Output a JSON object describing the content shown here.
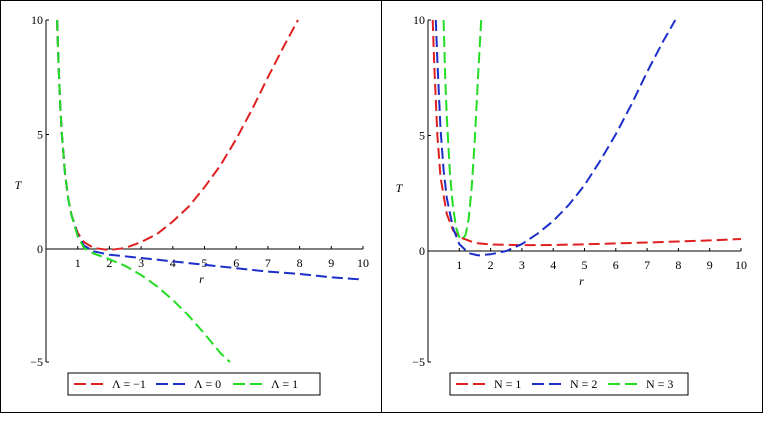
{
  "chart_data": [
    {
      "type": "line",
      "xlabel": "r",
      "ylabel": "T",
      "xlim": [
        0,
        10
      ],
      "ylim": [
        -5,
        10
      ],
      "x_ticks": [
        "1",
        "2",
        "3",
        "4",
        "5",
        "6",
        "7",
        "8",
        "9",
        "10"
      ],
      "y_ticks": [
        "−5",
        "0",
        "5",
        "10"
      ],
      "grid": false,
      "legend_position": "bottom",
      "series": [
        {
          "name": "Λ = −1",
          "color": "#e02020",
          "x": [
            0.35,
            0.4,
            0.45,
            0.5,
            0.6,
            0.7,
            0.8,
            1.0,
            1.2,
            1.5,
            2.0,
            2.5,
            3.0,
            3.5,
            4.0,
            4.5,
            5.0,
            5.5,
            6.0,
            6.5,
            7.0,
            7.5,
            7.95
          ],
          "values": [
            10.0,
            7.9,
            6.2,
            5.0,
            3.3,
            2.2,
            1.5,
            0.7,
            0.3,
            0.05,
            -0.05,
            0.05,
            0.3,
            0.65,
            1.2,
            1.85,
            2.7,
            3.65,
            4.8,
            6.1,
            7.5,
            8.85,
            10.0
          ]
        },
        {
          "name": "Λ = 0",
          "color": "#1c2fc8",
          "x": [
            0.35,
            0.4,
            0.45,
            0.5,
            0.6,
            0.7,
            0.8,
            1.0,
            1.2,
            1.5,
            2.0,
            3.0,
            4.0,
            5.0,
            6.0,
            7.0,
            8.0,
            9.0,
            10.0
          ],
          "values": [
            10.0,
            7.9,
            6.2,
            5.0,
            3.3,
            2.2,
            1.5,
            0.6,
            0.15,
            -0.1,
            -0.25,
            -0.4,
            -0.55,
            -0.7,
            -0.85,
            -1.0,
            -1.1,
            -1.25,
            -1.35
          ]
        },
        {
          "name": "Λ = 1",
          "color": "#22dd22",
          "x": [
            0.35,
            0.4,
            0.45,
            0.5,
            0.6,
            0.7,
            0.8,
            1.0,
            1.2,
            1.5,
            2.0,
            2.5,
            3.0,
            3.5,
            4.0,
            4.5,
            5.0,
            5.5,
            5.8
          ],
          "values": [
            10.0,
            7.9,
            6.2,
            5.0,
            3.3,
            2.2,
            1.5,
            0.55,
            0.05,
            -0.2,
            -0.45,
            -0.75,
            -1.15,
            -1.65,
            -2.25,
            -2.95,
            -3.75,
            -4.6,
            -5.0
          ]
        }
      ]
    },
    {
      "type": "line",
      "xlabel": "r",
      "ylabel": "T",
      "xlim": [
        0,
        10
      ],
      "ylim": [
        -5,
        10
      ],
      "x_ticks": [
        "1",
        "2",
        "3",
        "4",
        "5",
        "6",
        "7",
        "8",
        "9",
        "10"
      ],
      "y_ticks": [
        "−5",
        "0",
        "5",
        "10"
      ],
      "grid": false,
      "legend_position": "bottom",
      "series": [
        {
          "name": "N = 1",
          "color": "#e02020",
          "x": [
            0.15,
            0.2,
            0.3,
            0.4,
            0.6,
            0.8,
            1.0,
            1.5,
            2.0,
            3.0,
            4.0,
            5.0,
            6.0,
            7.0,
            8.0,
            9.0,
            10.0
          ],
          "values": [
            10.0,
            8.0,
            5.0,
            3.2,
            1.6,
            0.9,
            0.6,
            0.35,
            0.28,
            0.25,
            0.26,
            0.29,
            0.33,
            0.37,
            0.41,
            0.46,
            0.52
          ]
        },
        {
          "name": "N = 2",
          "color": "#1c2fc8",
          "x": [
            0.25,
            0.3,
            0.4,
            0.5,
            0.6,
            0.8,
            1.0,
            1.3,
            1.6,
            2.0,
            2.5,
            3.0,
            3.5,
            4.0,
            4.5,
            5.0,
            5.5,
            6.0,
            6.5,
            7.0,
            7.5,
            7.9
          ],
          "values": [
            10.0,
            8.2,
            5.3,
            3.5,
            2.3,
            1.0,
            0.3,
            -0.1,
            -0.2,
            -0.15,
            0.0,
            0.3,
            0.75,
            1.3,
            2.0,
            2.85,
            3.9,
            5.05,
            6.35,
            7.75,
            9.05,
            10.0
          ]
        },
        {
          "name": "N = 3",
          "color": "#22dd22",
          "x": [
            0.5,
            0.55,
            0.6,
            0.7,
            0.8,
            0.9,
            1.0,
            1.1,
            1.2,
            1.3,
            1.4,
            1.5,
            1.6,
            1.7
          ],
          "values": [
            10.0,
            7.5,
            5.8,
            3.4,
            1.9,
            1.0,
            0.6,
            0.5,
            0.7,
            1.4,
            2.8,
            4.9,
            7.6,
            10.0
          ]
        }
      ]
    }
  ]
}
